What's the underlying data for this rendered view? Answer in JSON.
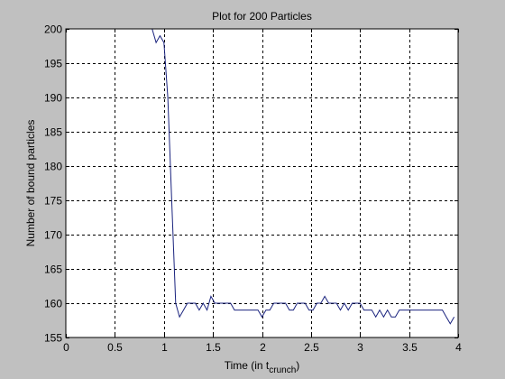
{
  "chart_data": {
    "type": "line",
    "title": "Plot for 200 Particles",
    "xlabel_main": "Time (in t",
    "xlabel_sub": "crunch",
    "xlabel_close": ")",
    "ylabel": "Number of bound particles",
    "xlim": [
      0,
      4
    ],
    "ylim": [
      155,
      200
    ],
    "xticks": [
      0,
      0.5,
      1,
      1.5,
      2,
      2.5,
      3,
      3.5,
      4
    ],
    "xtick_labels": [
      "0",
      "0.5",
      "1",
      "1.5",
      "2",
      "2.5",
      "3",
      "3.5",
      "4"
    ],
    "yticks": [
      155,
      160,
      165,
      170,
      175,
      180,
      185,
      190,
      195,
      200
    ],
    "ytick_labels": [
      "155",
      "160",
      "165",
      "170",
      "175",
      "180",
      "185",
      "190",
      "195",
      "200"
    ],
    "grid": true,
    "colors": {
      "line": "#1a237e",
      "background": "#c0c0c0",
      "axes": "#ffffff"
    },
    "series": [
      {
        "x": [
          0,
          0.4,
          0.8,
          0.88,
          0.92,
          0.96,
          1.0,
          1.04,
          1.08,
          1.12,
          1.16,
          1.2,
          1.24,
          1.28,
          1.32,
          1.36,
          1.4,
          1.44,
          1.48,
          1.52,
          1.56,
          1.6,
          1.64,
          1.68,
          1.72,
          1.76,
          1.8,
          1.84,
          1.88,
          1.92,
          1.96,
          2.0,
          2.04,
          2.08,
          2.12,
          2.16,
          2.2,
          2.24,
          2.28,
          2.32,
          2.36,
          2.4,
          2.44,
          2.48,
          2.52,
          2.56,
          2.6,
          2.64,
          2.68,
          2.72,
          2.76,
          2.8,
          2.84,
          2.88,
          2.92,
          2.96,
          3.0,
          3.04,
          3.08,
          3.12,
          3.16,
          3.2,
          3.24,
          3.28,
          3.32,
          3.36,
          3.4,
          3.44,
          3.48,
          3.52,
          3.56,
          3.6,
          3.64,
          3.68,
          3.72,
          3.76,
          3.8,
          3.84,
          3.88,
          3.92,
          3.96
        ],
        "y": [
          200,
          200,
          200,
          200,
          198,
          199,
          198,
          190,
          175,
          160,
          158,
          159,
          160,
          160,
          160,
          159,
          160,
          159,
          161,
          160,
          160,
          160,
          160,
          160,
          159,
          159,
          159,
          159,
          159,
          159,
          159,
          158,
          159,
          159,
          160,
          160,
          160,
          160,
          159,
          159,
          160,
          160,
          160,
          159,
          159,
          160,
          160,
          161,
          160,
          160,
          160,
          159,
          160,
          159,
          160,
          160,
          160,
          159,
          159,
          159,
          158,
          159,
          158,
          159,
          158,
          158,
          159,
          159,
          159,
          159,
          159,
          159,
          159,
          159,
          159,
          159,
          159,
          159,
          158,
          157,
          158
        ]
      }
    ]
  }
}
